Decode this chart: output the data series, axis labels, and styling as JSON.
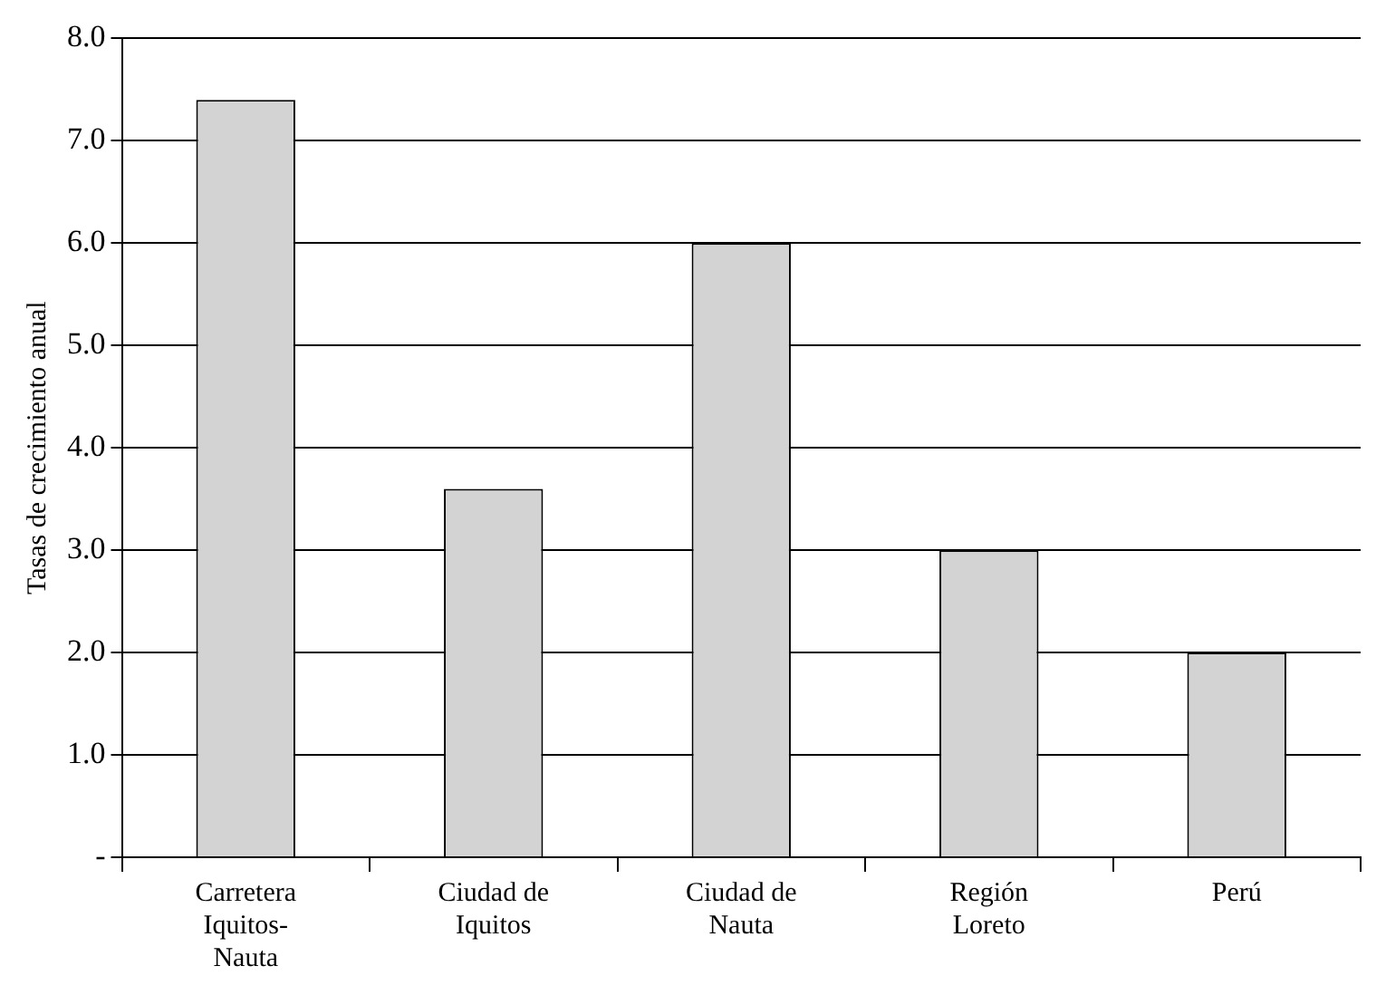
{
  "chart_data": {
    "type": "bar",
    "ylabel": "Tasas de crecimiento anual",
    "categories": [
      "Carretera Iquitos-Nauta",
      "Ciudad de Iquitos",
      "Ciudad de Nauta",
      "Región Loreto",
      "Perú"
    ],
    "values": [
      7.4,
      3.6,
      6.0,
      3.0,
      2.0
    ],
    "color": "#d3d3d3",
    "ylim": [
      0,
      8
    ],
    "yticks": [
      {
        "value": 0,
        "label": "-"
      },
      {
        "value": 1,
        "label": "1.0"
      },
      {
        "value": 2,
        "label": "2.0"
      },
      {
        "value": 3,
        "label": "3.0"
      },
      {
        "value": 4,
        "label": "4.0"
      },
      {
        "value": 5,
        "label": "5.0"
      },
      {
        "value": 6,
        "label": "6.0"
      },
      {
        "value": 7,
        "label": "7.0"
      },
      {
        "value": 8,
        "label": "8.0"
      }
    ],
    "grid": "y",
    "legend": false
  }
}
